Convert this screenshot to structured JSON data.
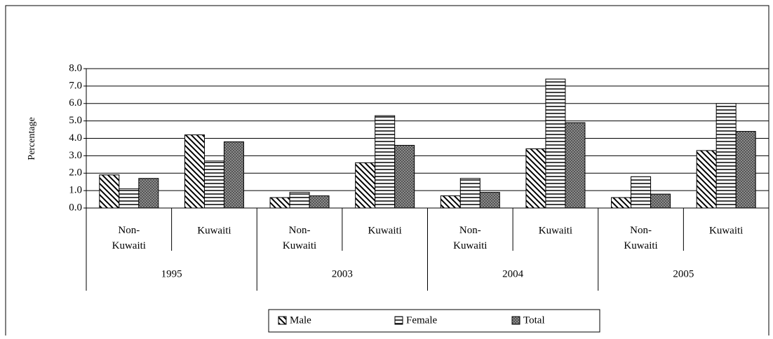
{
  "chart_data": {
    "type": "bar",
    "y_label": "Percentage",
    "categories": [
      "Non-Kuwaiti",
      "Kuwaiti",
      "Non-Kuwaiti",
      "Kuwaiti",
      "Non-Kuwaiti",
      "Kuwaiti",
      "Non-Kuwaiti",
      "Kuwaiti"
    ],
    "groups": [
      "1995",
      "2003",
      "2004",
      "2005"
    ],
    "series": [
      {
        "name": "Male",
        "pattern": "diagonal",
        "values": [
          1.9,
          4.2,
          0.6,
          2.6,
          0.7,
          3.4,
          0.6,
          3.3
        ]
      },
      {
        "name": "Female",
        "pattern": "horizontal",
        "values": [
          1.1,
          2.7,
          0.9,
          5.3,
          1.7,
          7.4,
          1.8,
          6.0
        ]
      },
      {
        "name": "Total",
        "pattern": "dots",
        "values": [
          1.7,
          3.8,
          0.7,
          3.6,
          0.9,
          4.9,
          0.8,
          4.4
        ]
      }
    ],
    "ylim": [
      0,
      8
    ],
    "yticks": [
      {
        "value": 0,
        "label": "0.0"
      },
      {
        "value": 1,
        "label": "1.0"
      },
      {
        "value": 2,
        "label": "2.0"
      },
      {
        "value": 3,
        "label": "3.0"
      },
      {
        "value": 4,
        "label": "4.0"
      },
      {
        "value": 5,
        "label": "5.0"
      },
      {
        "value": 6,
        "label": "6.0"
      },
      {
        "value": 7,
        "label": "7.0"
      },
      {
        "value": 8,
        "label": "8.0"
      }
    ],
    "grid": true,
    "legend": "bottom"
  }
}
